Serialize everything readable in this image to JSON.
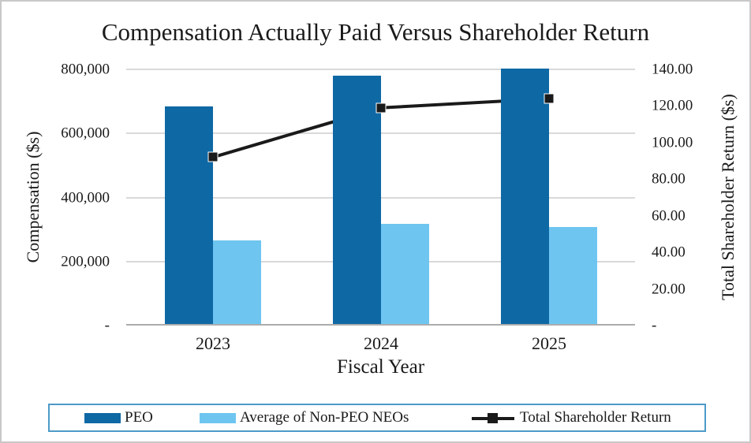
{
  "title": "Compensation Actually Paid Versus Shareholder Return",
  "axes": {
    "left": {
      "label": "Compensation ($s)",
      "ticks": [
        {
          "value": 800000,
          "label": "800,000"
        },
        {
          "value": 600000,
          "label": "600,000"
        },
        {
          "value": 400000,
          "label": "400,000"
        },
        {
          "value": 200000,
          "label": "200,000"
        },
        {
          "value": 0,
          "label": "-"
        }
      ]
    },
    "right": {
      "label": "Total Shareholder Return ($s)",
      "ticks": [
        {
          "value": 140,
          "label": "140.00"
        },
        {
          "value": 120,
          "label": "120.00"
        },
        {
          "value": 100,
          "label": "100.00"
        },
        {
          "value": 80,
          "label": "80.00"
        },
        {
          "value": 60,
          "label": "60.00"
        },
        {
          "value": 40,
          "label": "40.00"
        },
        {
          "value": 20,
          "label": "20.00"
        },
        {
          "value": 0,
          "label": "-"
        }
      ]
    },
    "x": {
      "label": "Fiscal Year",
      "categories": [
        "2023",
        "2024",
        "2025"
      ]
    }
  },
  "legend": {
    "items": [
      {
        "label": "PEO",
        "type": "bar",
        "color": "#0E68A4"
      },
      {
        "label": "Average of Non-PEO NEOs",
        "type": "bar",
        "color": "#6EC5F0"
      },
      {
        "label": "Total Shareholder Return",
        "type": "line",
        "color": "#1A1A1A"
      }
    ]
  },
  "colors": {
    "peo_bar": "#0E68A4",
    "non_peo_bar": "#6EC5F0",
    "tsr_line": "#1A1A1A",
    "gridline": "#D9D9D9",
    "axis_line": "#ACACAC",
    "frame_border": "#C8C8C8",
    "legend_border": "#4D9BC8",
    "text": "#1A1A1A"
  },
  "chart_data": {
    "type": "combo-bar-line",
    "categories": [
      "2023",
      "2024",
      "2025"
    ],
    "series": [
      {
        "name": "PEO",
        "type": "bar",
        "axis": "left",
        "color": "#0E68A4",
        "values": [
          680000,
          776000,
          797000
        ]
      },
      {
        "name": "Average of Non-PEO NEOs",
        "type": "bar",
        "axis": "left",
        "color": "#6EC5F0",
        "values": [
          261000,
          313000,
          304000
        ]
      },
      {
        "name": "Total Shareholder Return",
        "type": "line",
        "axis": "right",
        "color": "#1A1A1A",
        "values": [
          92,
          119,
          124
        ]
      }
    ],
    "title": "Compensation Actually Paid Versus Shareholder Return",
    "xlabel": "Fiscal Year",
    "ylabel_left": "Compensation ($s)",
    "ylabel_right": "Total Shareholder Return ($s)",
    "ylim_left": [
      0,
      800000
    ],
    "ylim_right": [
      0,
      140
    ],
    "left_tick_step": 200000,
    "right_tick_step": 20,
    "grid": true,
    "legend_position": "bottom"
  }
}
